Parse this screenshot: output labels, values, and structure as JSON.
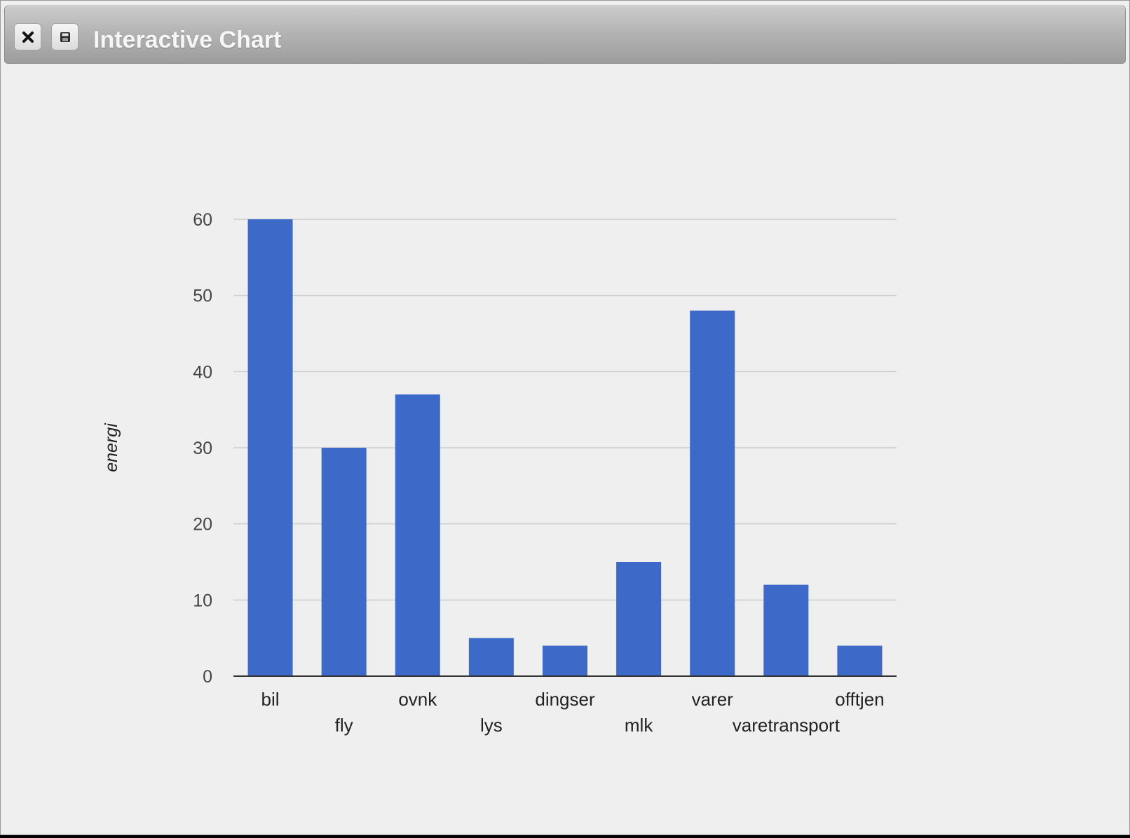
{
  "window": {
    "title": "Interactive Chart",
    "close_icon": "close-icon",
    "save_icon": "save-icon"
  },
  "colors": {
    "bar": "#3d69c8",
    "grid": "#cccccc",
    "baseline": "#333333"
  },
  "chart_data": {
    "type": "bar",
    "categories": [
      "bil",
      "fly",
      "ovnk",
      "lys",
      "dingser",
      "mlk",
      "varer",
      "varetransport",
      "offtjen"
    ],
    "values": [
      60,
      30,
      37,
      5,
      4,
      15,
      48,
      12,
      4
    ],
    "ylabel": "energi",
    "ylim": [
      0,
      60
    ],
    "yticks": [
      0,
      10,
      20,
      30,
      40,
      50,
      60
    ],
    "grid": true,
    "legend": "none"
  }
}
